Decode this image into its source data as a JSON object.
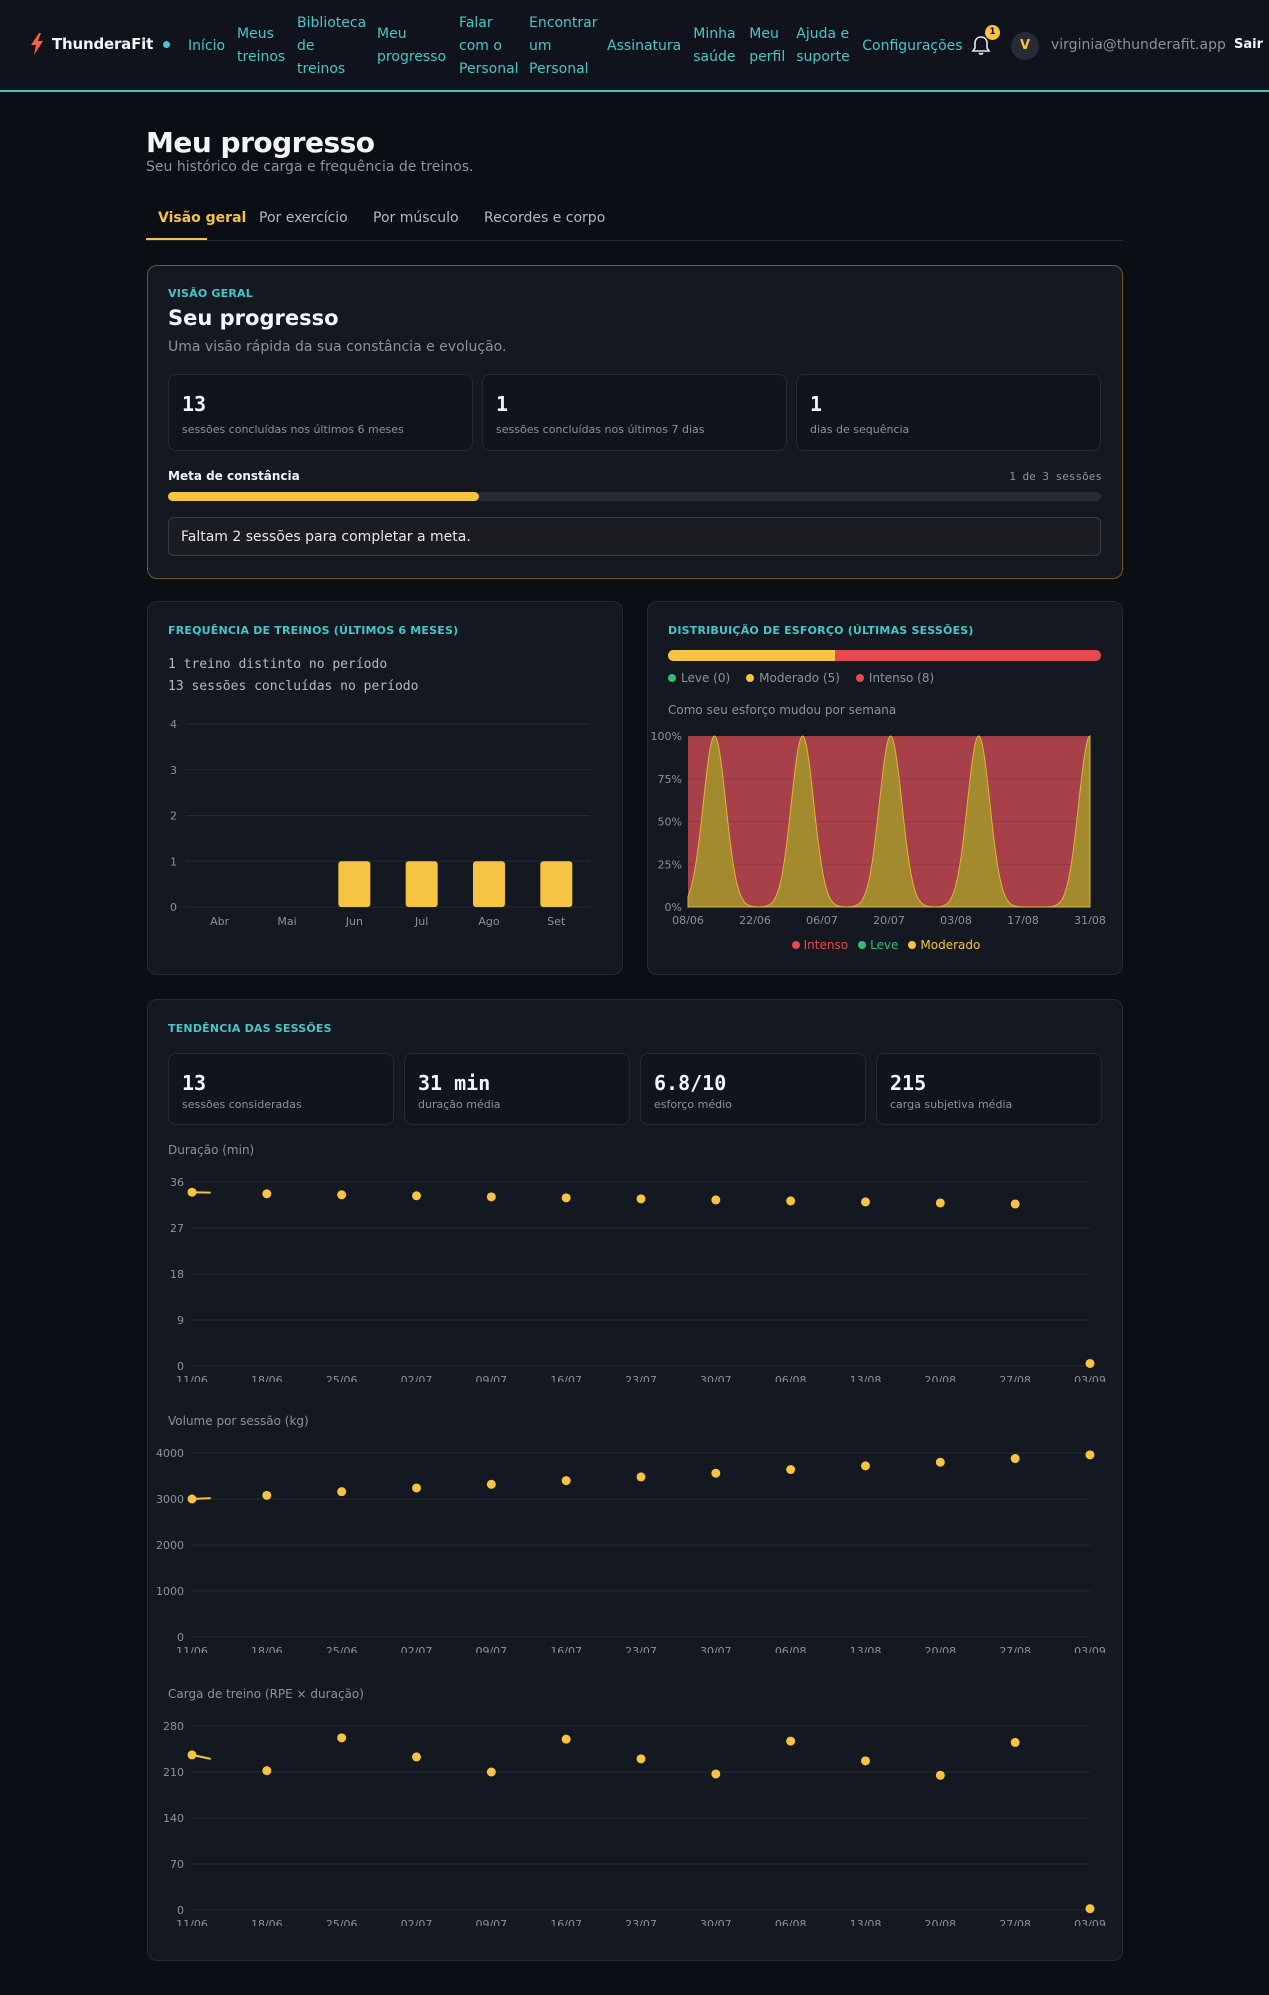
{
  "header": {
    "brand": "ThunderaFit",
    "nav": [
      {
        "label": "Início"
      },
      {
        "label": "Meus treinos"
      },
      {
        "label": "Biblioteca de treinos"
      },
      {
        "label": "Meu progresso"
      },
      {
        "label": "Falar com o Personal"
      },
      {
        "label": "Encontrar um Personal"
      },
      {
        "label": "Assinatura"
      },
      {
        "label": "Minha saúde"
      },
      {
        "label": "Meu perfil"
      },
      {
        "label": "Ajuda e suporte"
      },
      {
        "label": "Configurações"
      }
    ],
    "notifications": "1",
    "avatar_initial": "V",
    "email": "virginia@thunderafit.app",
    "logout": "Sair"
  },
  "page": {
    "title": "Meu progresso",
    "subtitle": "Seu histórico de carga e frequência de treinos.",
    "tabs": [
      "Visão geral",
      "Por exercício",
      "Por músculo",
      "Recordes e corpo"
    ]
  },
  "overview": {
    "eyebrow": "VISÃO GERAL",
    "title": "Seu progresso",
    "subtitle": "Uma visão rápida da sua constância e evolução.",
    "stats": [
      {
        "value": "13",
        "label": "sessões concluídas nos últimos 6 meses"
      },
      {
        "value": "1",
        "label": "sessões concluídas nos últimos 7 dias"
      },
      {
        "value": "1",
        "label": "dias de sequência"
      }
    ],
    "goal": {
      "label": "Meta de constância",
      "status": "1 de 3 sessões",
      "progress": 0.333
    },
    "notice": "Faltam 2 sessões para completar a meta."
  },
  "frequency": {
    "eyebrow": "FREQUÊNCIA DE TREINOS (ÚLTIMOS 6 MESES)",
    "line1": "1 treino distinto no período",
    "line2": "13 sessões concluídas no período"
  },
  "effort": {
    "eyebrow": "DISTRIBUIÇÃO DE ESFORÇO (ÚLTIMAS SESSÕES)",
    "legend": [
      {
        "label": "Leve (0)",
        "color": "#2fbf71",
        "count": 0
      },
      {
        "label": "Moderado (5)",
        "color": "#f6c343",
        "count": 5
      },
      {
        "label": "Intenso (8)",
        "color": "#e5484d",
        "count": 8
      }
    ],
    "chart_title": "Como seu esforço mudou por semana",
    "chart_legend": [
      {
        "label": "Intenso",
        "color": "#e5484d"
      },
      {
        "label": "Leve",
        "color": "#2fbf71"
      },
      {
        "label": "Moderado",
        "color": "#f6c343"
      }
    ]
  },
  "trend": {
    "eyebrow": "TENDÊNCIA DAS SESSÕES",
    "stats": [
      {
        "value": "13",
        "label": "sessões consideradas"
      },
      {
        "value": "31 min",
        "label": "duração média"
      },
      {
        "value": "6.8/10",
        "label": "esforço médio"
      },
      {
        "value": "215",
        "label": "carga subjetiva média"
      }
    ],
    "titles": [
      "Duração (min)",
      "Volume por sessão (kg)",
      "Carga de treino (RPE × duração)"
    ]
  },
  "chart_data": [
    {
      "type": "bar",
      "categories": [
        "Abr",
        "Mai",
        "Jun",
        "Jul",
        "Ago",
        "Set"
      ],
      "values": [
        0,
        0,
        1,
        1,
        1,
        1
      ],
      "ylim": [
        0,
        4
      ],
      "yticks": [
        "0",
        "1",
        "2",
        "3",
        "4"
      ],
      "color": "#f6c343"
    },
    {
      "type": "area",
      "x": [
        "08/06",
        "22/06",
        "06/07",
        "20/07",
        "03/08",
        "17/08",
        "31/08"
      ],
      "yticks": [
        "0%",
        "25%",
        "50%",
        "75%",
        "100%"
      ],
      "ylim": [
        0,
        100
      ],
      "series": [
        {
          "name": "Intenso",
          "color": "#e5484d"
        },
        {
          "name": "Leve",
          "color": "#2fbf71"
        },
        {
          "name": "Moderado",
          "color": "#f6c343",
          "peaks": [
            "15/06",
            "06/07",
            "27/07",
            "17/08",
            "31/08"
          ]
        }
      ]
    },
    {
      "type": "scatter",
      "x": [
        "11/06",
        "18/06",
        "25/06",
        "02/07",
        "09/07",
        "16/07",
        "23/07",
        "30/07",
        "06/08",
        "13/08",
        "20/08",
        "27/08",
        "03/09"
      ],
      "values": [
        34,
        33.7,
        33.5,
        33.3,
        33.1,
        32.9,
        32.7,
        32.5,
        32.3,
        32.1,
        31.9,
        31.7,
        0.5
      ],
      "yticks": [
        "0",
        "9",
        "18",
        "27",
        "36"
      ],
      "ylim": [
        0,
        36
      ],
      "color": "#f6c343"
    },
    {
      "type": "scatter",
      "x": [
        "11/06",
        "18/06",
        "25/06",
        "02/07",
        "09/07",
        "16/07",
        "23/07",
        "30/07",
        "06/08",
        "13/08",
        "20/08",
        "27/08",
        "03/09"
      ],
      "values": [
        3000,
        3080,
        3160,
        3240,
        3320,
        3400,
        3480,
        3560,
        3640,
        3720,
        3800,
        3880,
        3960
      ],
      "yticks": [
        "0",
        "1000",
        "2000",
        "3000",
        "4000"
      ],
      "ylim": [
        0,
        4000
      ],
      "color": "#f6c343"
    },
    {
      "type": "scatter",
      "x": [
        "11/06",
        "18/06",
        "25/06",
        "02/07",
        "09/07",
        "16/07",
        "23/07",
        "30/07",
        "06/08",
        "13/08",
        "20/08",
        "27/08",
        "03/09"
      ],
      "values": [
        236,
        212,
        262,
        233,
        210,
        260,
        230,
        207,
        257,
        227,
        205,
        255,
        2
      ],
      "yticks": [
        "0",
        "70",
        "140",
        "210",
        "280"
      ],
      "ylim": [
        0,
        280
      ],
      "color": "#f6c343"
    }
  ]
}
